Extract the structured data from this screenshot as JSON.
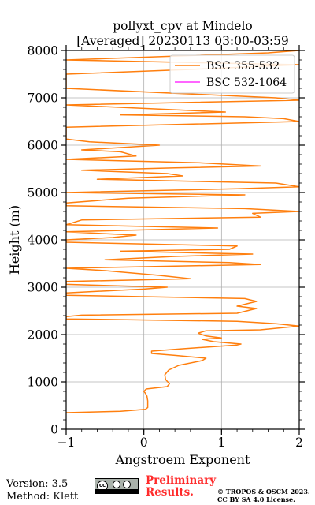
{
  "chart_data": {
    "type": "line",
    "title": [
      "pollyxt_cpv at Mindelo",
      "[Averaged] 20230113 03:00-03:59"
    ],
    "xlabel": "Angstroem Exponent",
    "ylabel": "Height (m)",
    "xlim": [
      -1,
      2
    ],
    "ylim": [
      0,
      8000
    ],
    "xticks": [
      -1,
      0,
      1,
      2
    ],
    "xtick_labels": [
      "−1",
      "0",
      "1",
      "2"
    ],
    "yticks": [
      0,
      1000,
      2000,
      3000,
      4000,
      5000,
      6000,
      7000,
      8000
    ],
    "ytick_labels": [
      "0",
      "1000",
      "2000",
      "3000",
      "4000",
      "5000",
      "6000",
      "7000",
      "8000"
    ],
    "grid": true,
    "legend_position": "top-right",
    "series": [
      {
        "name": "BSC 355-532",
        "color": "#ff7f0e",
        "points": [
          [
            -1.0,
            350
          ],
          [
            -0.3,
            380
          ],
          [
            0.02,
            420
          ],
          [
            0.05,
            460
          ],
          [
            0.05,
            600
          ],
          [
            0.04,
            700
          ],
          [
            0.02,
            760
          ],
          [
            0.0,
            800
          ],
          [
            0.03,
            850
          ],
          [
            0.3,
            900
          ],
          [
            0.33,
            960
          ],
          [
            0.28,
            1050
          ],
          [
            0.27,
            1150
          ],
          [
            0.32,
            1250
          ],
          [
            0.45,
            1350
          ],
          [
            0.75,
            1450
          ],
          [
            0.8,
            1500
          ],
          [
            0.4,
            1560
          ],
          [
            0.1,
            1600
          ],
          [
            0.1,
            1650
          ],
          [
            0.5,
            1700
          ],
          [
            1.2,
            1780
          ],
          [
            1.25,
            1800
          ],
          [
            0.9,
            1850
          ],
          [
            0.75,
            1900
          ],
          [
            1.0,
            1930
          ],
          [
            0.8,
            1970
          ],
          [
            0.7,
            2030
          ],
          [
            0.8,
            2080
          ],
          [
            1.5,
            2100
          ],
          [
            2.0,
            2180
          ],
          [
            1.7,
            2230
          ],
          [
            1.2,
            2280
          ],
          [
            -1.0,
            2330
          ],
          [
            -1.0,
            2380
          ],
          [
            -0.8,
            2410
          ],
          [
            1.2,
            2450
          ],
          [
            1.45,
            2550
          ],
          [
            1.2,
            2600
          ],
          [
            1.45,
            2700
          ],
          [
            1.3,
            2760
          ],
          [
            -1.0,
            2830
          ],
          [
            -1.0,
            2880
          ],
          [
            0.0,
            2960
          ],
          [
            0.3,
            3000
          ],
          [
            -1.0,
            3060
          ],
          [
            -1.0,
            3120
          ],
          [
            0.6,
            3180
          ],
          [
            0.2,
            3250
          ],
          [
            -0.5,
            3350
          ],
          [
            -1.0,
            3400
          ],
          [
            1.5,
            3480
          ],
          [
            1.1,
            3520
          ],
          [
            -0.5,
            3580
          ],
          [
            0.4,
            3650
          ],
          [
            1.4,
            3700
          ],
          [
            -0.3,
            3760
          ],
          [
            1.1,
            3800
          ],
          [
            1.2,
            3870
          ],
          [
            -1.0,
            3950
          ],
          [
            -1.0,
            4000
          ],
          [
            -0.4,
            4050
          ],
          [
            -0.1,
            4100
          ],
          [
            -1.0,
            4170
          ],
          [
            0.95,
            4250
          ],
          [
            -1.0,
            4320
          ],
          [
            -0.8,
            4420
          ],
          [
            1.5,
            4480
          ],
          [
            1.4,
            4560
          ],
          [
            2.0,
            4600
          ],
          [
            1.3,
            4660
          ],
          [
            -1.0,
            4720
          ],
          [
            -1.0,
            4780
          ],
          [
            -0.6,
            4830
          ],
          [
            -0.2,
            4880
          ],
          [
            1.3,
            4950
          ],
          [
            -1.0,
            5000
          ],
          [
            1.2,
            5080
          ],
          [
            2.0,
            5120
          ],
          [
            1.7,
            5200
          ],
          [
            -0.6,
            5280
          ],
          [
            0.5,
            5350
          ],
          [
            0.3,
            5400
          ],
          [
            -0.8,
            5470
          ],
          [
            0.4,
            5520
          ],
          [
            1.5,
            5560
          ],
          [
            0.7,
            5630
          ],
          [
            -1.0,
            5700
          ],
          [
            -0.1,
            5770
          ],
          [
            -0.3,
            5860
          ],
          [
            -0.8,
            5900
          ],
          [
            0.2,
            6000
          ],
          [
            -0.7,
            6070
          ],
          [
            -1.0,
            6130
          ],
          [
            -1.0,
            6200
          ],
          [
            -1.0,
            6380
          ],
          [
            2.0,
            6500
          ],
          [
            1.8,
            6560
          ],
          [
            1.3,
            6600
          ],
          [
            -0.3,
            6640
          ],
          [
            1.05,
            6700
          ],
          [
            -1.0,
            6850
          ],
          [
            2.0,
            6950
          ],
          [
            1.7,
            7000
          ],
          [
            -1.0,
            7200
          ],
          [
            -1.0,
            7500
          ],
          [
            0.6,
            7600
          ],
          [
            2.0,
            7700
          ],
          [
            -1.0,
            7800
          ],
          [
            1.6,
            7950
          ],
          [
            2.0,
            8000
          ]
        ]
      },
      {
        "name": "BSC 532-1064",
        "color": "#ff33ff",
        "points": []
      }
    ]
  },
  "footer": {
    "version": "Version: 3.5",
    "method": "Method: Klett",
    "preliminary_line1": "Preliminary",
    "preliminary_line2": "Results.",
    "copyright_line1": "© TROPOS & OSCM 2023.",
    "copyright_line2": "CC BY SA 4.0 License.",
    "license_logo": "cc-by-sa-logo"
  }
}
